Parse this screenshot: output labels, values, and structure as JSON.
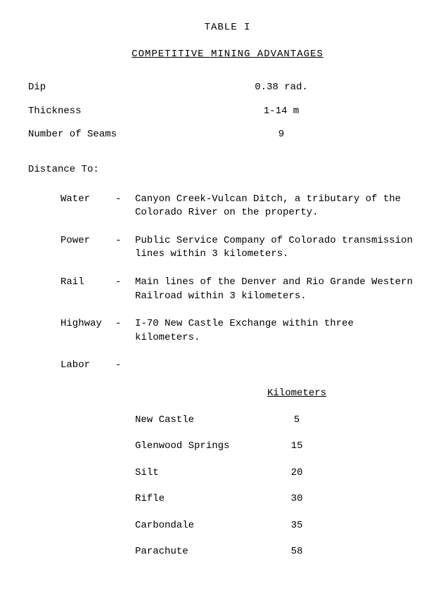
{
  "title": "TABLE I",
  "subtitle": "COMPETITIVE MINING ADVANTAGES",
  "properties": [
    {
      "label": "Dip",
      "value": "0.38 rad."
    },
    {
      "label": "Thickness",
      "value": "1-14 m"
    },
    {
      "label": "Number of Seams",
      "value": "9"
    }
  ],
  "distance_heading": "Distance To:",
  "distances": [
    {
      "label": "Water",
      "desc": "Canyon Creek-Vulcan Ditch, a tributary of the Colorado River on the property."
    },
    {
      "label": "Power",
      "desc": "Public Service Company of Colorado transmission lines within 3 kilometers."
    },
    {
      "label": "Rail",
      "desc": "Main lines of the Denver and Rio Grande Western Railroad within 3 kilometers."
    },
    {
      "label": "Highway",
      "desc": "I-70 New Castle Exchange within three kilometers."
    }
  ],
  "labor_label": "Labor",
  "labor_km_header": "Kilometers",
  "labor": [
    {
      "place": "New Castle",
      "km": "5"
    },
    {
      "place": "Glenwood Springs",
      "km": "15"
    },
    {
      "place": "Silt",
      "km": "20"
    },
    {
      "place": "Rifle",
      "km": "30"
    },
    {
      "place": "Carbondale",
      "km": "35"
    },
    {
      "place": "Parachute",
      "km": "58"
    }
  ],
  "dash": "-"
}
